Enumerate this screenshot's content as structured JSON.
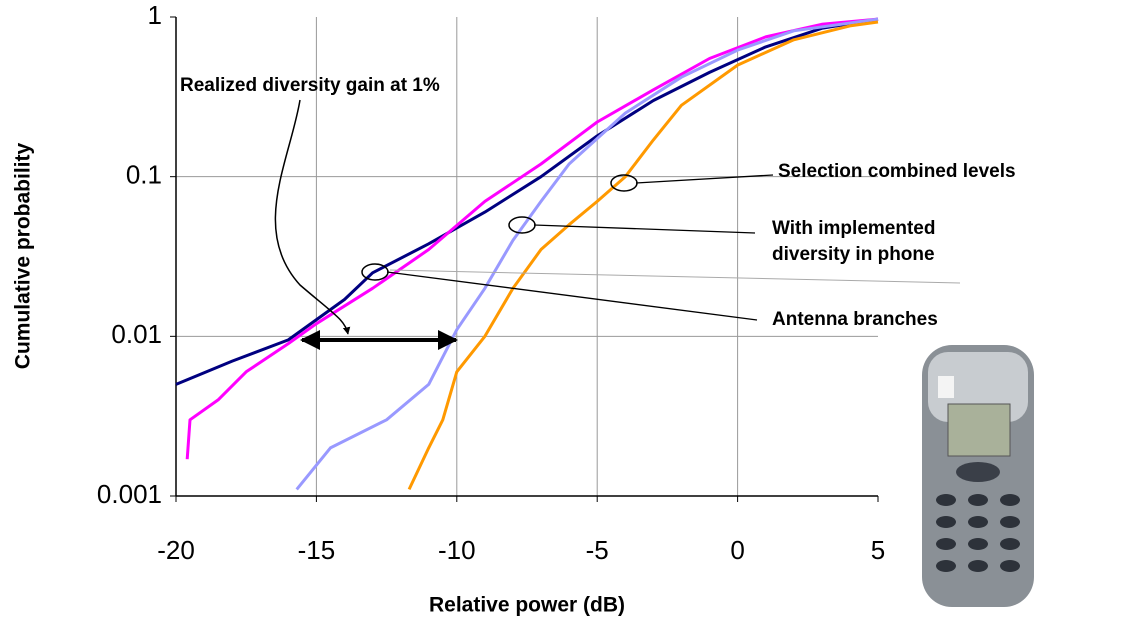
{
  "chart_data": {
    "type": "line",
    "x_label": "Relative power (dB)",
    "y_label": "Cumulative probability",
    "xlim": [
      -20,
      5
    ],
    "xticks": [
      -20,
      -15,
      -10,
      -5,
      0,
      5
    ],
    "ylim": [
      0.001,
      1
    ],
    "yticks": [
      0.001,
      0.01,
      0.1,
      1
    ],
    "log_y": true,
    "grid": true,
    "series": [
      {
        "color": "#000080",
        "x": [
          -20,
          -18,
          -16,
          -14,
          -13,
          -11,
          -9,
          -7,
          -5,
          -3,
          -1,
          1,
          3,
          5
        ],
        "values": [
          0.005,
          0.007,
          0.0095,
          0.017,
          0.025,
          0.038,
          0.06,
          0.1,
          0.18,
          0.3,
          0.45,
          0.65,
          0.85,
          0.97
        ]
      },
      {
        "color": "#ff00ff",
        "x": [
          -19.6,
          -19.5,
          -18.5,
          -17.5,
          -16,
          -15,
          -13,
          -11,
          -9,
          -7,
          -5,
          -3,
          -1,
          1,
          3,
          5
        ],
        "values": [
          0.0017,
          0.003,
          0.004,
          0.006,
          0.009,
          0.012,
          0.02,
          0.035,
          0.07,
          0.12,
          0.22,
          0.35,
          0.55,
          0.75,
          0.9,
          0.97
        ]
      },
      {
        "color": "#9999ff",
        "x": [
          -15.7,
          -14.5,
          -12.5,
          -11,
          -10,
          -9,
          -8,
          -7,
          -6,
          -4,
          -2,
          0,
          2,
          5
        ],
        "values": [
          0.0011,
          0.002,
          0.003,
          0.005,
          0.011,
          0.02,
          0.04,
          0.07,
          0.12,
          0.25,
          0.42,
          0.62,
          0.82,
          0.97
        ]
      },
      {
        "color": "#ff9900",
        "x": [
          -11.7,
          -11,
          -10.5,
          -10,
          -9,
          -8,
          -7,
          -6,
          -5,
          -4,
          -3,
          -2,
          0,
          2,
          4,
          5
        ],
        "values": [
          0.0011,
          0.002,
          0.003,
          0.006,
          0.01,
          0.02,
          0.035,
          0.05,
          0.07,
          0.1,
          0.17,
          0.28,
          0.5,
          0.72,
          0.88,
          0.93
        ]
      }
    ],
    "annotations": [
      {
        "text": "Realized diversity gain at 1%"
      },
      {
        "text": "Selection combined levels"
      },
      {
        "lines": [
          "With implemented",
          "diversity in phone"
        ]
      },
      {
        "text": "Antenna branches"
      }
    ]
  }
}
